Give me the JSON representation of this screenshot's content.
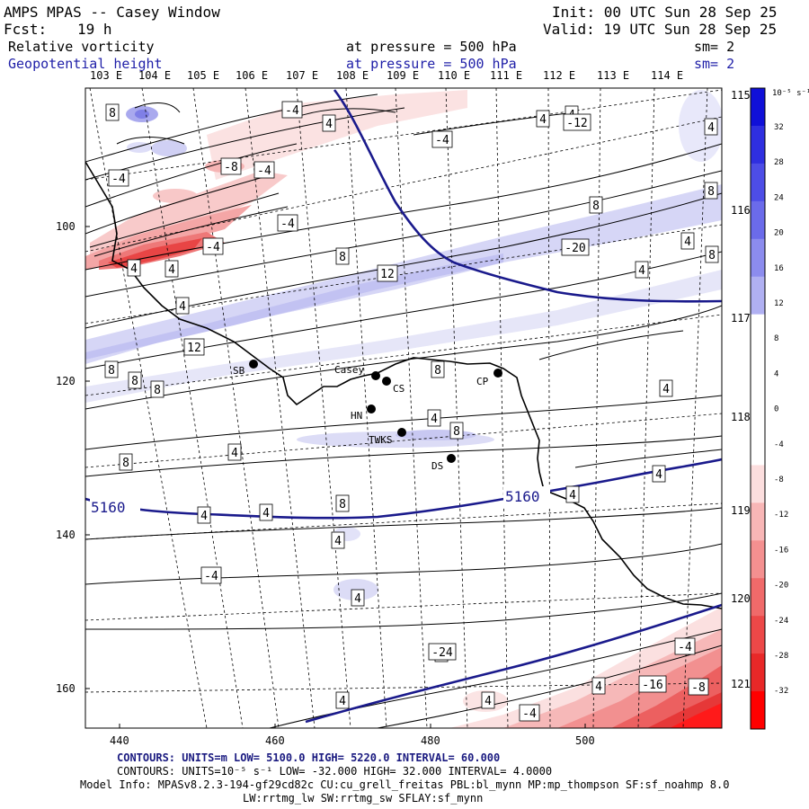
{
  "header": {
    "title": "AMPS MPAS -- Casey Window",
    "init": "Init: 00 UTC Sun 28 Sep 25",
    "fcst_label": "Fcst:",
    "fcst_value": "19 h",
    "valid": "Valid: 19 UTC Sun 28 Sep 25",
    "field1_name": "Relative vorticity",
    "field1_pressure": "at pressure =  500 hPa",
    "field1_sm": "sm= 2",
    "field2_name": "Geopotential height",
    "field2_pressure": "at pressure =  500 hPa",
    "field2_sm": "sm= 2"
  },
  "top_longitudes": [
    "103 E",
    "104 E",
    "105 E",
    "106 E",
    "107 E",
    "108 E",
    "109 E",
    "110 E",
    "111 E",
    "112 E",
    "113 E",
    "114 E"
  ],
  "right_longitudes": [
    "115 E",
    "116 E",
    "117 E",
    "118 E",
    "119 E",
    "120 E",
    "121 E"
  ],
  "x_ticks": [
    "440",
    "460",
    "480",
    "500"
  ],
  "y_ticks": [
    "100",
    "120",
    "140",
    "160"
  ],
  "colorbar": {
    "unit_label": "10⁻⁵ s⁻¹",
    "levels": [
      "32",
      "28",
      "24",
      "20",
      "16",
      "12",
      "8",
      "4",
      "0",
      "-4",
      "-8",
      "-12",
      "-16",
      "-20",
      "-24",
      "-28",
      "-32"
    ],
    "colors": [
      "#1010d8",
      "#2f2fe0",
      "#4d4de6",
      "#6b6bea",
      "#8c8cee",
      "#b0b0f2",
      "#ffffff",
      "#ffffff",
      "#ffffff",
      "#ffffff",
      "#fcdede",
      "#f8b6b6",
      "#f49090",
      "#f06a6a",
      "#ec4848",
      "#e82828",
      "#ff0000"
    ]
  },
  "stations": [
    {
      "name": "Casey"
    },
    {
      "name": "CS"
    },
    {
      "name": "SB"
    },
    {
      "name": "CP"
    },
    {
      "name": "HN"
    },
    {
      "name": "TWKS"
    },
    {
      "name": "DS"
    }
  ],
  "contour_labels": {
    "height": [
      "5160",
      "5160"
    ],
    "vorticity": [
      "8",
      "-4",
      "4",
      "-4",
      "4",
      "4",
      "4",
      "-4",
      "-8",
      "-4",
      "-4",
      "8",
      "-4",
      "4",
      "4",
      "4",
      "8",
      "8",
      "8",
      "12",
      "8",
      "12",
      "8",
      "4",
      "8",
      "8",
      "4",
      "4",
      "4",
      "8",
      "8",
      "4",
      "4",
      "4",
      "8",
      "4",
      "4",
      "4",
      "-4",
      "4",
      "8",
      "4",
      "4",
      "-4",
      "4",
      "-4",
      "-16",
      "-8",
      "-12",
      "-20",
      "-24"
    ]
  },
  "footer": {
    "line1": "CONTOURS:  UNITS=m  LOW=  5100.0          HIGH=  5220.0          INTERVAL=   60.000",
    "line2": "CONTOURS:  UNITS=10⁻⁵ s⁻¹  LOW= -32.000          HIGH=  32.000          INTERVAL=   4.0000",
    "line3": "Model Info: MPASv8.2.3-194-gf29cd82c CU:cu_grell_freitas PBL:bl_mynn MP:mp_thompson SF:sf_noahmp 8.0",
    "line4": "LW:rrtmg_lw SW:rrtmg_sw SFLAY:sf_mynn"
  }
}
